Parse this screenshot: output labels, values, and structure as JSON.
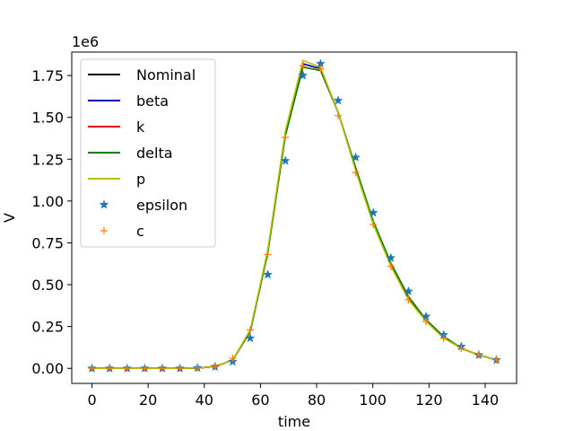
{
  "chart_data": {
    "type": "line",
    "xlabel": "time",
    "ylabel": "V",
    "y_offset_label": "1e6",
    "xlim": [
      -7.2,
      151.2
    ],
    "ylim": [
      -0.09,
      1.89
    ],
    "xticks": [
      0,
      20,
      40,
      60,
      80,
      100,
      120,
      140
    ],
    "xtick_labels": [
      "0",
      "20",
      "40",
      "60",
      "80",
      "100",
      "120",
      "140"
    ],
    "yticks": [
      0.0,
      0.25,
      0.5,
      0.75,
      1.0,
      1.25,
      1.5,
      1.75
    ],
    "ytick_labels": [
      "0.00",
      "0.25",
      "0.50",
      "0.75",
      "1.00",
      "1.25",
      "1.50",
      "1.75"
    ],
    "grid": false,
    "legend_position": "top-left",
    "x": [
      0,
      6.26,
      12.52,
      18.78,
      25.04,
      31.3,
      37.57,
      43.83,
      50.09,
      56.35,
      62.61,
      68.87,
      75.13,
      81.39,
      87.65,
      93.91,
      100.17,
      106.43,
      112.7,
      118.96,
      125.22,
      131.48,
      137.74,
      144
    ],
    "series": [
      {
        "name": "Nominal",
        "style": "line",
        "color": "#000000",
        "values": [
          0,
          0,
          0,
          0,
          0,
          0,
          0.002,
          0.01,
          0.05,
          0.22,
          0.7,
          1.4,
          1.82,
          1.79,
          1.53,
          1.19,
          0.87,
          0.62,
          0.42,
          0.29,
          0.19,
          0.12,
          0.08,
          0.05
        ]
      },
      {
        "name": "beta",
        "style": "line",
        "color": "#0000bf",
        "values": [
          0,
          0,
          0,
          0,
          0,
          0,
          0.002,
          0.01,
          0.05,
          0.22,
          0.7,
          1.4,
          1.82,
          1.79,
          1.53,
          1.19,
          0.87,
          0.62,
          0.42,
          0.29,
          0.19,
          0.12,
          0.08,
          0.05
        ]
      },
      {
        "name": "k",
        "style": "line",
        "color": "#e60000",
        "values": [
          0,
          0,
          0,
          0,
          0,
          0,
          0.002,
          0.01,
          0.05,
          0.22,
          0.7,
          1.41,
          1.8,
          1.78,
          1.53,
          1.19,
          0.87,
          0.62,
          0.42,
          0.29,
          0.19,
          0.12,
          0.08,
          0.05
        ]
      },
      {
        "name": "delta",
        "style": "line",
        "color": "#008000",
        "values": [
          0,
          0,
          0,
          0,
          0,
          0,
          0.002,
          0.01,
          0.05,
          0.22,
          0.69,
          1.39,
          1.8,
          1.78,
          1.53,
          1.2,
          0.88,
          0.63,
          0.43,
          0.29,
          0.19,
          0.12,
          0.08,
          0.05
        ]
      },
      {
        "name": "p",
        "style": "line",
        "color": "#bfbf00",
        "values": [
          0,
          0,
          0,
          0,
          0,
          0,
          0.002,
          0.01,
          0.05,
          0.23,
          0.71,
          1.42,
          1.84,
          1.8,
          1.53,
          1.18,
          0.86,
          0.61,
          0.41,
          0.28,
          0.18,
          0.12,
          0.08,
          0.05
        ]
      },
      {
        "name": "epsilon",
        "style": "marker-star",
        "color": "#1f77b4",
        "values": [
          0,
          0,
          0,
          0,
          0,
          0,
          0.003,
          0.01,
          0.04,
          0.18,
          0.56,
          1.24,
          1.75,
          1.82,
          1.6,
          1.26,
          0.93,
          0.66,
          0.46,
          0.31,
          0.2,
          0.13,
          0.08,
          0.05
        ]
      },
      {
        "name": "c",
        "style": "marker-plus",
        "color": "#ff7f0e",
        "values": [
          0,
          0,
          0,
          0,
          0,
          0,
          0.002,
          0.01,
          0.06,
          0.23,
          0.68,
          1.38,
          1.81,
          1.79,
          1.51,
          1.17,
          0.86,
          0.61,
          0.41,
          0.28,
          0.18,
          0.12,
          0.08,
          0.05
        ]
      }
    ]
  }
}
